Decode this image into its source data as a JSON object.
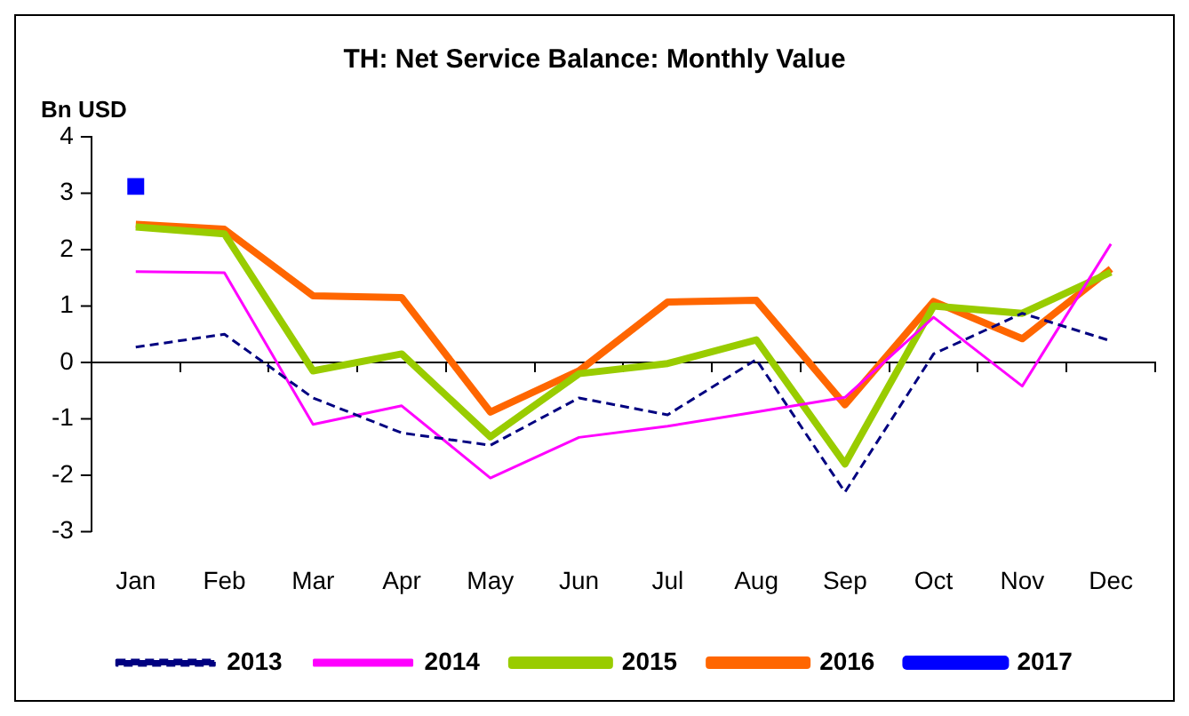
{
  "chart_data": {
    "type": "line",
    "title": "TH: Net Service Balance: Monthly Value",
    "ylabel": "Bn USD",
    "categories": [
      "Jan",
      "Feb",
      "Mar",
      "Apr",
      "May",
      "Jun",
      "Jul",
      "Aug",
      "Sep",
      "Oct",
      "Nov",
      "Dec"
    ],
    "series": [
      {
        "name": "2013",
        "color": "#000080",
        "line_style": "dashed",
        "values": [
          0.27,
          0.5,
          -0.63,
          -1.25,
          -1.47,
          -0.63,
          -0.93,
          0.05,
          -2.3,
          0.15,
          0.87,
          0.38
        ]
      },
      {
        "name": "2014",
        "color": "#ff00ff",
        "values": [
          1.61,
          1.59,
          -1.1,
          -0.77,
          -2.05,
          -1.33,
          -1.13,
          -0.88,
          -0.62,
          0.8,
          -0.42,
          2.1
        ]
      },
      {
        "name": "2015",
        "color": "#99cc00",
        "values": [
          2.4,
          2.28,
          -0.15,
          0.15,
          -1.32,
          -0.2,
          -0.02,
          0.4,
          -1.8,
          1.0,
          0.87,
          1.6
        ]
      },
      {
        "name": "2016",
        "color": "#ff6600",
        "values": [
          2.45,
          2.36,
          1.18,
          1.15,
          -0.88,
          -0.15,
          1.07,
          1.1,
          -0.75,
          1.08,
          0.42,
          1.66
        ]
      },
      {
        "name": "2017",
        "color": "#0000ff",
        "marker": "square",
        "values": [
          3.12,
          null,
          null,
          null,
          null,
          null,
          null,
          null,
          null,
          null,
          null,
          null
        ]
      }
    ],
    "ylim": [
      -3,
      4
    ],
    "yticks": [
      -3,
      -2,
      -1,
      0,
      1,
      2,
      3,
      4
    ],
    "legend": "bottom",
    "marker": "none",
    "line_style": "solid"
  }
}
